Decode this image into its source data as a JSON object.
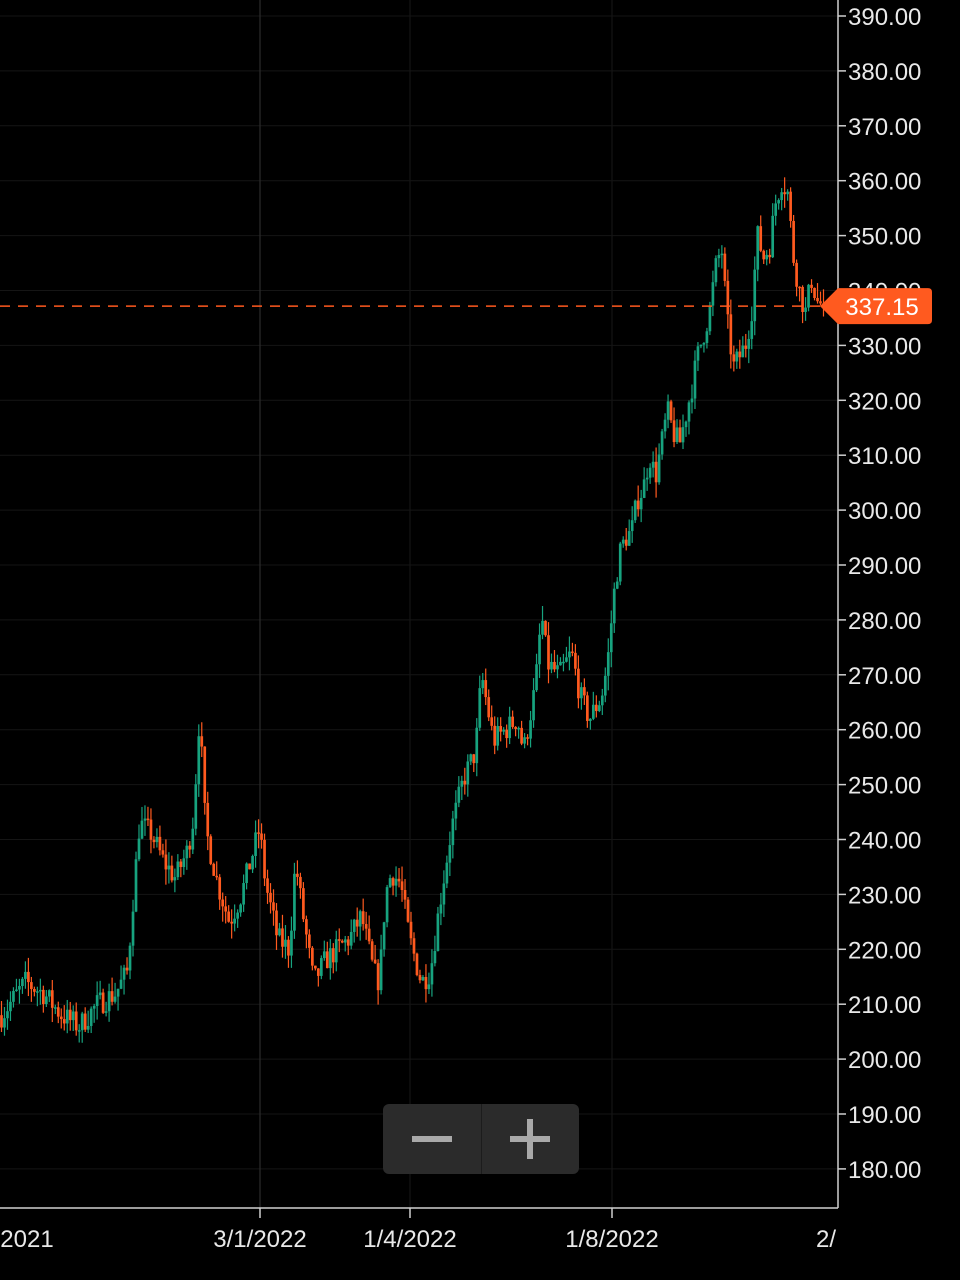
{
  "chart_data": {
    "type": "candlestick",
    "x_tick_labels": [
      "2021",
      "3/1/2022",
      "1/4/2022",
      "1/8/2022",
      "2/"
    ],
    "y_tick_labels": [
      "390.00",
      "380.00",
      "370.00",
      "360.00",
      "350.00",
      "340.00",
      "330.00",
      "320.00",
      "310.00",
      "300.00",
      "290.00",
      "280.00",
      "270.00",
      "260.00",
      "250.00",
      "240.00",
      "230.00",
      "220.00",
      "210.00",
      "200.00",
      "190.00",
      "180.00"
    ],
    "ylim": [
      176,
      393
    ],
    "y_step": 10,
    "grid": true,
    "last_price": 337.15,
    "last_price_label": "337.15",
    "price_path": [
      [
        0,
        208
      ],
      [
        8,
        214
      ],
      [
        14,
        212
      ],
      [
        20,
        208
      ],
      [
        26,
        206
      ],
      [
        32,
        210
      ],
      [
        38,
        212
      ],
      [
        42,
        216
      ],
      [
        44,
        230
      ],
      [
        46,
        243
      ],
      [
        50,
        241
      ],
      [
        54,
        236
      ],
      [
        58,
        233
      ],
      [
        62,
        238
      ],
      [
        64,
        244
      ],
      [
        66,
        263
      ],
      [
        68,
        242
      ],
      [
        72,
        232
      ],
      [
        76,
        225
      ],
      [
        80,
        230
      ],
      [
        84,
        238
      ],
      [
        86,
        242
      ],
      [
        88,
        232
      ],
      [
        92,
        222
      ],
      [
        96,
        220
      ],
      [
        98,
        236
      ],
      [
        100,
        228
      ],
      [
        104,
        214
      ],
      [
        108,
        218
      ],
      [
        112,
        220
      ],
      [
        116,
        222
      ],
      [
        120,
        226
      ],
      [
        124,
        216
      ],
      [
        126,
        214
      ],
      [
        128,
        230
      ],
      [
        130,
        234
      ],
      [
        133,
        232
      ],
      [
        136,
        222
      ],
      [
        140,
        214
      ],
      [
        143,
        216
      ],
      [
        146,
        228
      ],
      [
        150,
        242
      ],
      [
        154,
        251
      ],
      [
        158,
        256
      ],
      [
        160,
        270
      ],
      [
        162,
        264
      ],
      [
        164,
        258
      ],
      [
        168,
        260
      ],
      [
        172,
        262
      ],
      [
        174,
        256
      ],
      [
        178,
        268
      ],
      [
        180,
        281
      ],
      [
        182,
        272
      ],
      [
        186,
        270
      ],
      [
        190,
        274
      ],
      [
        193,
        266
      ],
      [
        196,
        262
      ],
      [
        198,
        264
      ],
      [
        200,
        266
      ],
      [
        202,
        272
      ],
      [
        204,
        284
      ],
      [
        206,
        292
      ],
      [
        208,
        295
      ],
      [
        210,
        296
      ],
      [
        212,
        302
      ],
      [
        214,
        304
      ],
      [
        216,
        310
      ],
      [
        218,
        306
      ],
      [
        220,
        312
      ],
      [
        222,
        318
      ],
      [
        224,
        314
      ],
      [
        226,
        312
      ],
      [
        230,
        322
      ],
      [
        232,
        328
      ],
      [
        236,
        336
      ],
      [
        238,
        344
      ],
      [
        240,
        348
      ],
      [
        242,
        334
      ],
      [
        244,
        326
      ],
      [
        246,
        328
      ],
      [
        248,
        330
      ],
      [
        250,
        336
      ],
      [
        252,
        350
      ],
      [
        254,
        346
      ],
      [
        256,
        348
      ],
      [
        258,
        356
      ],
      [
        260,
        360
      ],
      [
        262,
        358
      ],
      [
        264,
        346
      ],
      [
        266,
        340
      ],
      [
        268,
        336
      ],
      [
        270,
        342
      ],
      [
        272,
        338
      ],
      [
        274,
        337.15
      ]
    ]
  }
}
